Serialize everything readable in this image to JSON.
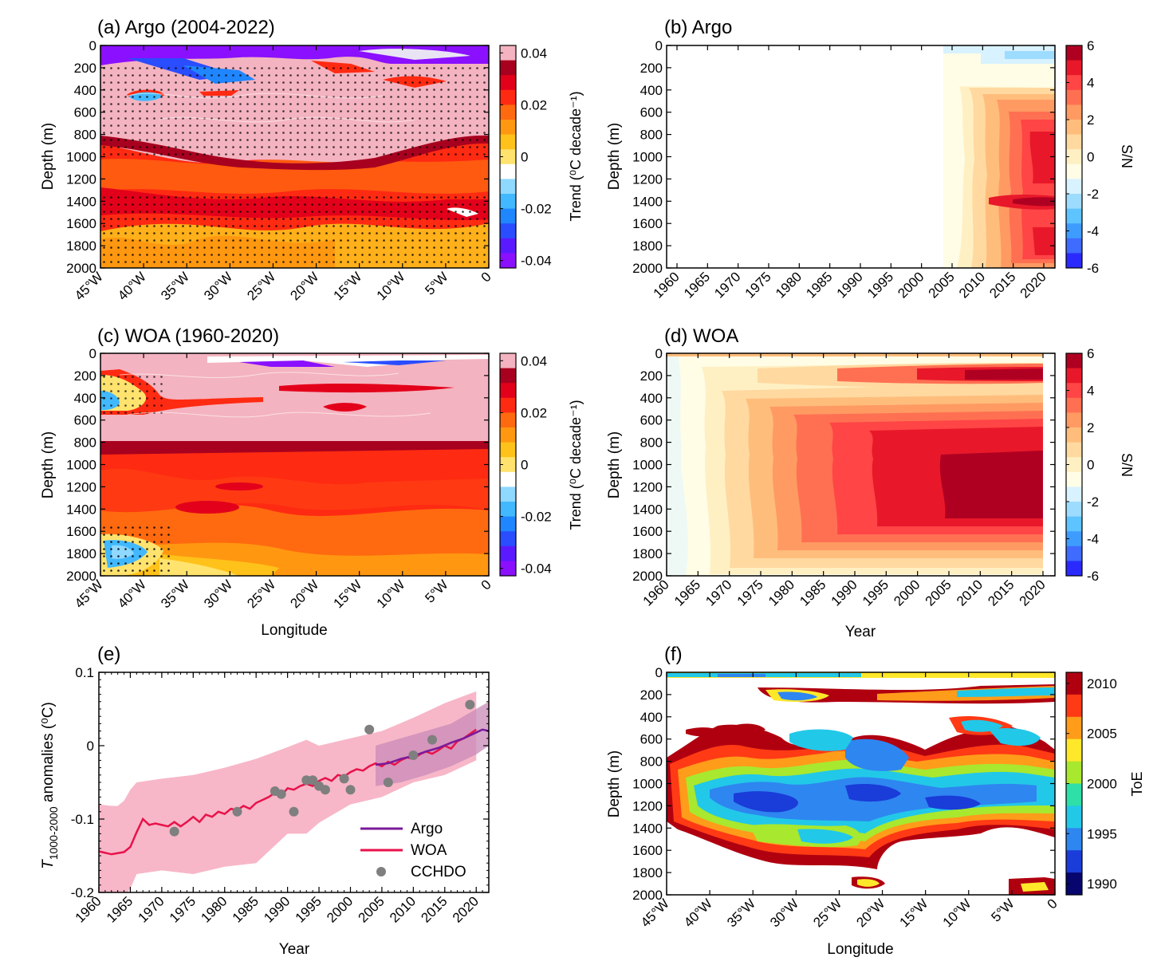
{
  "colors": {
    "trend": [
      "#8a10ff",
      "#5a1aff",
      "#2a4dff",
      "#1f86ff",
      "#41b8ff",
      "#8fd8ff",
      "#ffffff",
      "#ffe36e",
      "#ffc21a",
      "#ff9810",
      "#ff6a10",
      "#ff2a12",
      "#e3001a",
      "#a8001f",
      "#f4b3c0"
    ],
    "sn": [
      "#2a2aff",
      "#3f6bff",
      "#3f9cff",
      "#5ec4ff",
      "#9edcff",
      "#d8f2ff",
      "#fffde6",
      "#fff0c4",
      "#ffd9a0",
      "#ffbd7c",
      "#ff9a63",
      "#ff7052",
      "#ff4545",
      "#e8182a",
      "#b00022"
    ],
    "toe": [
      "#06066e",
      "#1a3cd8",
      "#2e86f0",
      "#22c8e8",
      "#2ee0a8",
      "#a8e82e",
      "#ffe82a",
      "#ff9c1a",
      "#ff3a14",
      "#b00010"
    ],
    "argo_line": "#7a1a9a",
    "woa_line": "#e8124a",
    "woa_band": "#f7b7c8",
    "argo_band": "#c98ab8",
    "cchdo": "#7f7f7f"
  },
  "panels": {
    "a": {
      "title": "(a) Argo (2004-2022)",
      "ylabel": "Depth (m)",
      "cb_label": "Trend (⁰C decade⁻¹)"
    },
    "b": {
      "title": "(b) Argo",
      "ylabel": "Depth (m)",
      "cb_label": "S/N"
    },
    "c": {
      "title": "(c) WOA (1960-2020)",
      "ylabel": "Depth (m)",
      "xlabel": "Longitude",
      "cb_label": "Trend (⁰C decade⁻¹)"
    },
    "d": {
      "title": "(d) WOA",
      "ylabel": "Depth (m)",
      "xlabel": "Year",
      "cb_label": "S/N"
    },
    "e": {
      "title": "(e)",
      "xlabel": "Year",
      "ylabel_main": "T",
      "ylabel_sub": "1000-2000",
      "ylabel_rest": " anomalies (⁰C)"
    },
    "f": {
      "title": "(f)",
      "ylabel": "Depth (m)",
      "xlabel": "Longitude",
      "cb_label": "ToE"
    }
  },
  "ticks": {
    "depth": [
      "0",
      "200",
      "400",
      "600",
      "800",
      "1000",
      "1200",
      "1400",
      "1600",
      "1800",
      "2000"
    ],
    "longitude": [
      "45°W",
      "40°W",
      "35°W",
      "30°W",
      "25°W",
      "20°W",
      "15°W",
      "10°W",
      "5°W",
      "0"
    ],
    "years": [
      "1960",
      "1965",
      "1970",
      "1975",
      "1980",
      "1985",
      "1990",
      "1995",
      "2000",
      "2005",
      "2010",
      "2015",
      "2020"
    ],
    "trend_cb": [
      "0.04",
      "0.02",
      "0",
      "-0.02",
      "-0.04"
    ],
    "sn_cb": [
      "6",
      "4",
      "2",
      "0",
      "-2",
      "-4",
      "-6"
    ],
    "toe_cb": [
      "2010",
      "2005",
      "2000",
      "1995",
      "1990"
    ],
    "e_y": [
      "0.1",
      "0",
      "-0.1",
      "-0.2"
    ]
  },
  "legend": {
    "argo": "Argo",
    "woa": "WOA",
    "cchdo": "CCHDO"
  },
  "chart_data": [
    {
      "panel": "a",
      "type": "heatmap",
      "title": "(a) Argo (2004-2022)",
      "x_range": [
        -45,
        0
      ],
      "y_range": [
        0,
        2000
      ],
      "colorbar_range": [
        -0.04,
        0.04
      ],
      "note": "Temperature trend by longitude and depth; warming below 800 m, cooling near surface"
    },
    {
      "panel": "b",
      "type": "heatmap",
      "title": "(b) Argo",
      "x_range": [
        1960,
        2022
      ],
      "y_range": [
        0,
        2000
      ],
      "colorbar_range": [
        -6,
        6
      ],
      "note": "Signal-to-noise ratio; data only from 2004, strongest near 1400 m and 800-1200 m by 2020"
    },
    {
      "panel": "c",
      "type": "heatmap",
      "title": "(c) WOA (1960-2020)",
      "x_range": [
        -45,
        0
      ],
      "y_range": [
        0,
        2000
      ],
      "colorbar_range": [
        -0.04,
        0.04
      ]
    },
    {
      "panel": "d",
      "type": "heatmap",
      "title": "(d) WOA",
      "x_range": [
        1960,
        2020
      ],
      "y_range": [
        0,
        2000
      ],
      "colorbar_range": [
        -6,
        6
      ]
    },
    {
      "panel": "e",
      "type": "line",
      "title": "(e)",
      "xlabel": "Year",
      "ylabel": "T1000-2000 anomalies (°C)",
      "xlim": [
        1960,
        2022
      ],
      "ylim": [
        -0.2,
        0.1
      ],
      "series": [
        {
          "name": "WOA",
          "x": [
            1960,
            1962,
            1964,
            1965,
            1966,
            1967,
            1968,
            1969,
            1970,
            1971,
            1972,
            1973,
            1974,
            1975,
            1976,
            1977,
            1978,
            1979,
            1980,
            1981,
            1982,
            1983,
            1984,
            1985,
            1986,
            1987,
            1988,
            1989,
            1990,
            1991,
            1992,
            1993,
            1994,
            1995,
            1996,
            1997,
            1998,
            1999,
            2000,
            2001,
            2002,
            2003,
            2004,
            2005,
            2006,
            2007,
            2008,
            2009,
            2010,
            2011,
            2012,
            2013,
            2014,
            2015,
            2016,
            2017,
            2018,
            2019,
            2020
          ],
          "values": [
            -0.144,
            -0.148,
            -0.145,
            -0.138,
            -0.118,
            -0.1,
            -0.108,
            -0.106,
            -0.108,
            -0.11,
            -0.104,
            -0.11,
            -0.104,
            -0.097,
            -0.104,
            -0.094,
            -0.097,
            -0.09,
            -0.093,
            -0.086,
            -0.088,
            -0.082,
            -0.086,
            -0.078,
            -0.074,
            -0.07,
            -0.064,
            -0.068,
            -0.058,
            -0.06,
            -0.055,
            -0.052,
            -0.055,
            -0.048,
            -0.044,
            -0.048,
            -0.04,
            -0.042,
            -0.036,
            -0.032,
            -0.034,
            -0.028,
            -0.024,
            -0.028,
            -0.022,
            -0.026,
            -0.02,
            -0.016,
            -0.018,
            -0.012,
            -0.008,
            -0.011,
            -0.006,
            0.0,
            -0.004,
            0.006,
            0.01,
            0.016,
            0.022
          ]
        },
        {
          "name": "Argo",
          "x": [
            2004,
            2006,
            2008,
            2010,
            2012,
            2014,
            2016,
            2018,
            2020,
            2021,
            2022
          ],
          "values": [
            -0.026,
            -0.024,
            -0.018,
            -0.014,
            -0.008,
            -0.003,
            0.004,
            0.01,
            0.018,
            0.022,
            0.02
          ]
        },
        {
          "name": "CCHDO",
          "x": [
            1972,
            1982,
            1988,
            1989,
            1991,
            1993,
            1994,
            1995,
            1996,
            1999,
            2000,
            2003,
            2006,
            2010,
            2013,
            2019
          ],
          "values": [
            -0.117,
            -0.09,
            -0.062,
            -0.066,
            -0.09,
            -0.047,
            -0.047,
            -0.055,
            -0.06,
            -0.045,
            -0.06,
            0.022,
            -0.05,
            -0.013,
            0.008,
            0.056
          ]
        }
      ],
      "woa_band": {
        "x": [
          1960,
          1962,
          1963,
          1964,
          1965,
          1966,
          1970,
          1975,
          1980,
          1985,
          1990,
          1993,
          1995,
          2000,
          2005,
          2010,
          2015,
          2020
        ],
        "upper": [
          -0.08,
          -0.082,
          -0.082,
          -0.075,
          -0.06,
          -0.05,
          -0.045,
          -0.04,
          -0.03,
          -0.018,
          -0.002,
          0.008,
          0.0,
          0.01,
          0.02,
          0.038,
          0.058,
          0.074
        ],
        "lower": [
          -0.205,
          -0.21,
          -0.21,
          -0.205,
          -0.195,
          -0.175,
          -0.17,
          -0.175,
          -0.165,
          -0.16,
          -0.12,
          -0.12,
          -0.105,
          -0.08,
          -0.07,
          -0.05,
          -0.04,
          -0.02
        ]
      },
      "argo_band": {
        "x": [
          2004,
          2008,
          2012,
          2016,
          2020,
          2022
        ],
        "upper": [
          0.0,
          0.01,
          0.02,
          0.03,
          0.05,
          0.06
        ],
        "lower": [
          -0.055,
          -0.05,
          -0.04,
          -0.028,
          -0.012,
          0.0
        ]
      }
    },
    {
      "panel": "f",
      "type": "heatmap",
      "title": "(f)",
      "x_range": [
        -45,
        0
      ],
      "y_range": [
        0,
        2000
      ],
      "colorbar_range": [
        1990,
        2010
      ],
      "note": "Time of emergence; earliest emergence (blue, ~1993) at 800-1300 m depth"
    }
  ]
}
